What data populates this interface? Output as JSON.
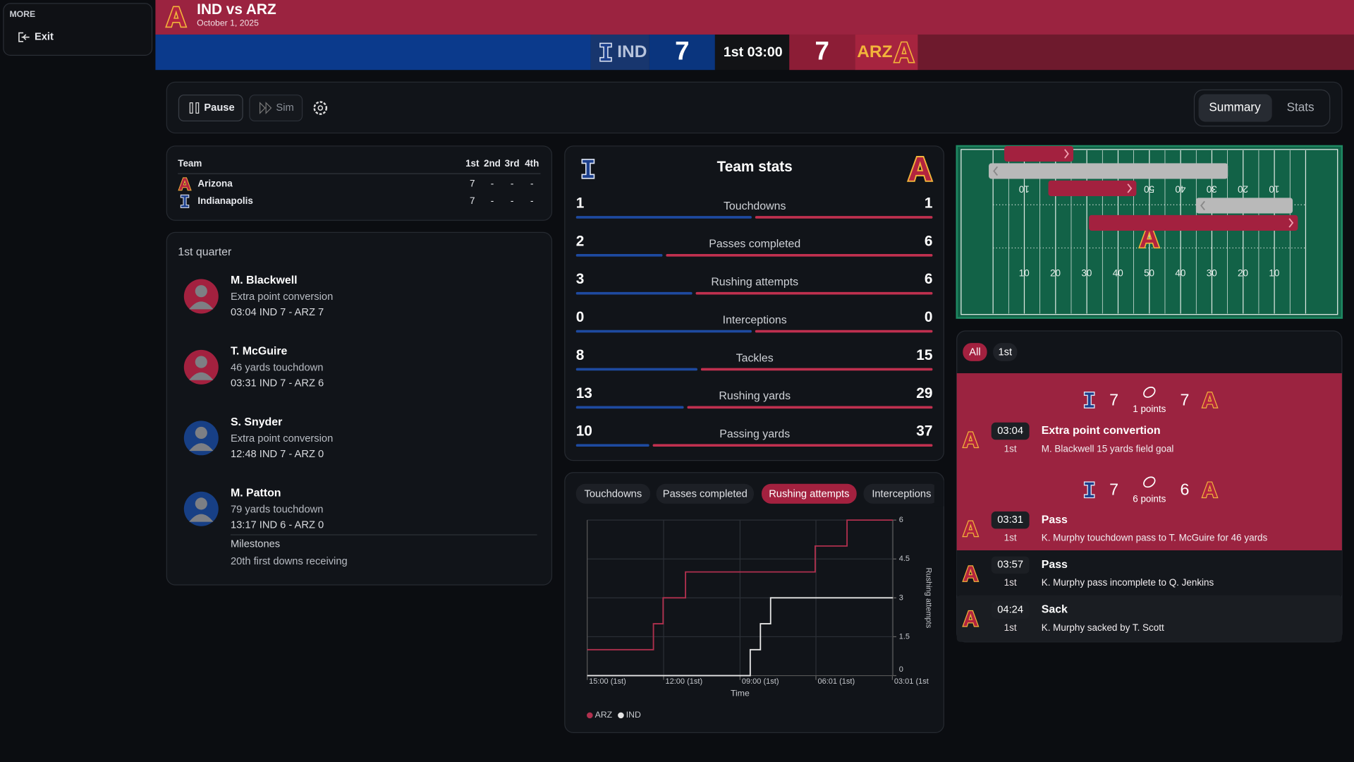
{
  "sidebar": {
    "heading": "MORE",
    "exit": "Exit"
  },
  "header": {
    "title": "IND vs ARZ",
    "date": "October 1, 2025"
  },
  "scoreboard": {
    "home_abbr": "IND",
    "home_score": 7,
    "clock": "1st 03:00",
    "away_score": 7,
    "away_abbr": "ARZ"
  },
  "controls": {
    "pause": "Pause",
    "sim": "Sim",
    "tabs": [
      "Summary",
      "Stats"
    ],
    "active_tab": 0
  },
  "scoring_table": {
    "header": [
      "Team",
      "1st",
      "2nd",
      "3rd",
      "4th"
    ],
    "rows": [
      {
        "team": "Arizona",
        "quarters": [
          7,
          "-",
          "-",
          "-"
        ]
      },
      {
        "team": "Indianapolis",
        "quarters": [
          7,
          "-",
          "-",
          "-"
        ]
      }
    ]
  },
  "quarter_log": {
    "title": "1st quarter",
    "plays": [
      {
        "player": "M. Blackwell",
        "desc": "Extra point conversion",
        "detail": "03:04 IND 7 - ARZ 7",
        "color": "#a3213f"
      },
      {
        "player": "T. McGuire",
        "desc": "46 yards touchdown",
        "detail": "03:31 IND 7 - ARZ 6",
        "color": "#a3213f"
      },
      {
        "player": "S. Snyder",
        "desc": "Extra point conversion",
        "detail": "12:48 IND 7 - ARZ 0",
        "color": "#173f85"
      },
      {
        "player": "M. Patton",
        "desc": "79 yards touchdown",
        "detail": "13:17 IND 6 - ARZ 0",
        "color": "#173f85",
        "milestones": {
          "title": "Milestones",
          "items": [
            "20th first downs receiving"
          ]
        }
      }
    ]
  },
  "team_stats": {
    "title": "Team stats",
    "home_color": "#1e4aa0",
    "away_color": "#c0304f",
    "rows": [
      {
        "label": "Touchdowns",
        "ind": 1,
        "arz": 1
      },
      {
        "label": "Passes completed",
        "ind": 2,
        "arz": 6
      },
      {
        "label": "Rushing attempts",
        "ind": 3,
        "arz": 6
      },
      {
        "label": "Interceptions",
        "ind": 0,
        "arz": 0
      },
      {
        "label": "Tackles",
        "ind": 8,
        "arz": 15
      },
      {
        "label": "Rushing yards",
        "ind": 13,
        "arz": 29
      },
      {
        "label": "Passing yards",
        "ind": 10,
        "arz": 37
      }
    ]
  },
  "chart": {
    "type": "line",
    "tabs": [
      "Touchdowns",
      "Passes completed",
      "Rushing attempts",
      "Interceptions"
    ],
    "active_tab": 2,
    "x_label": "Time",
    "y_label": "Rushing attempts",
    "xlim": [
      0,
      12
    ],
    "xticks": [
      {
        "value": 0,
        "label": "15:00 (1st)"
      },
      {
        "value": 3,
        "label": "12:00 (1st)"
      },
      {
        "value": 6,
        "label": "09:00 (1st)"
      },
      {
        "value": 8.98,
        "label": "06:01 (1st)"
      },
      {
        "value": 11.98,
        "label": "03:01 (1st"
      }
    ],
    "ylim": [
      0,
      6
    ],
    "yticks": [
      0,
      1.5,
      3,
      4.5,
      6
    ],
    "series": [
      {
        "name": "ARZ",
        "color": "#b0304e",
        "x": [
          0,
          2.6,
          2.98,
          3.86,
          8.95,
          10.2,
          12
        ],
        "values": [
          1,
          2,
          3,
          4,
          5,
          6,
          6
        ]
      },
      {
        "name": "IND",
        "color": "#e6e6e6",
        "x": [
          0,
          6.4,
          6.8,
          7.2,
          12
        ],
        "values": [
          0,
          1,
          2,
          3,
          3
        ]
      }
    ]
  },
  "field": {
    "yard_labels": [
      "10",
      "20",
      "30",
      "40",
      "50",
      "40",
      "30",
      "20",
      "10"
    ]
  },
  "play_feed": {
    "filters": [
      "All",
      "1st"
    ],
    "active_filter": 0,
    "items": [
      {
        "score": {
          "ind": 7,
          "points": "1 points",
          "arz": 7
        },
        "time": "03:04",
        "quarter": "1st",
        "title": "Extra point convertion",
        "desc": "M. Blackwell 15 yards field goal"
      },
      {
        "score": {
          "ind": 7,
          "points": "6 points",
          "arz": 6
        },
        "time": "03:31",
        "quarter": "1st",
        "title": "Pass",
        "desc": "K. Murphy touchdown pass to T. McGuire for 46 yards"
      },
      {
        "time": "03:57",
        "quarter": "1st",
        "title": "Pass",
        "desc": "K. Murphy pass incomplete to Q. Jenkins"
      },
      {
        "time": "04:24",
        "quarter": "1st",
        "title": "Sack",
        "desc": "K. Murphy sacked by T. Scott"
      }
    ]
  }
}
